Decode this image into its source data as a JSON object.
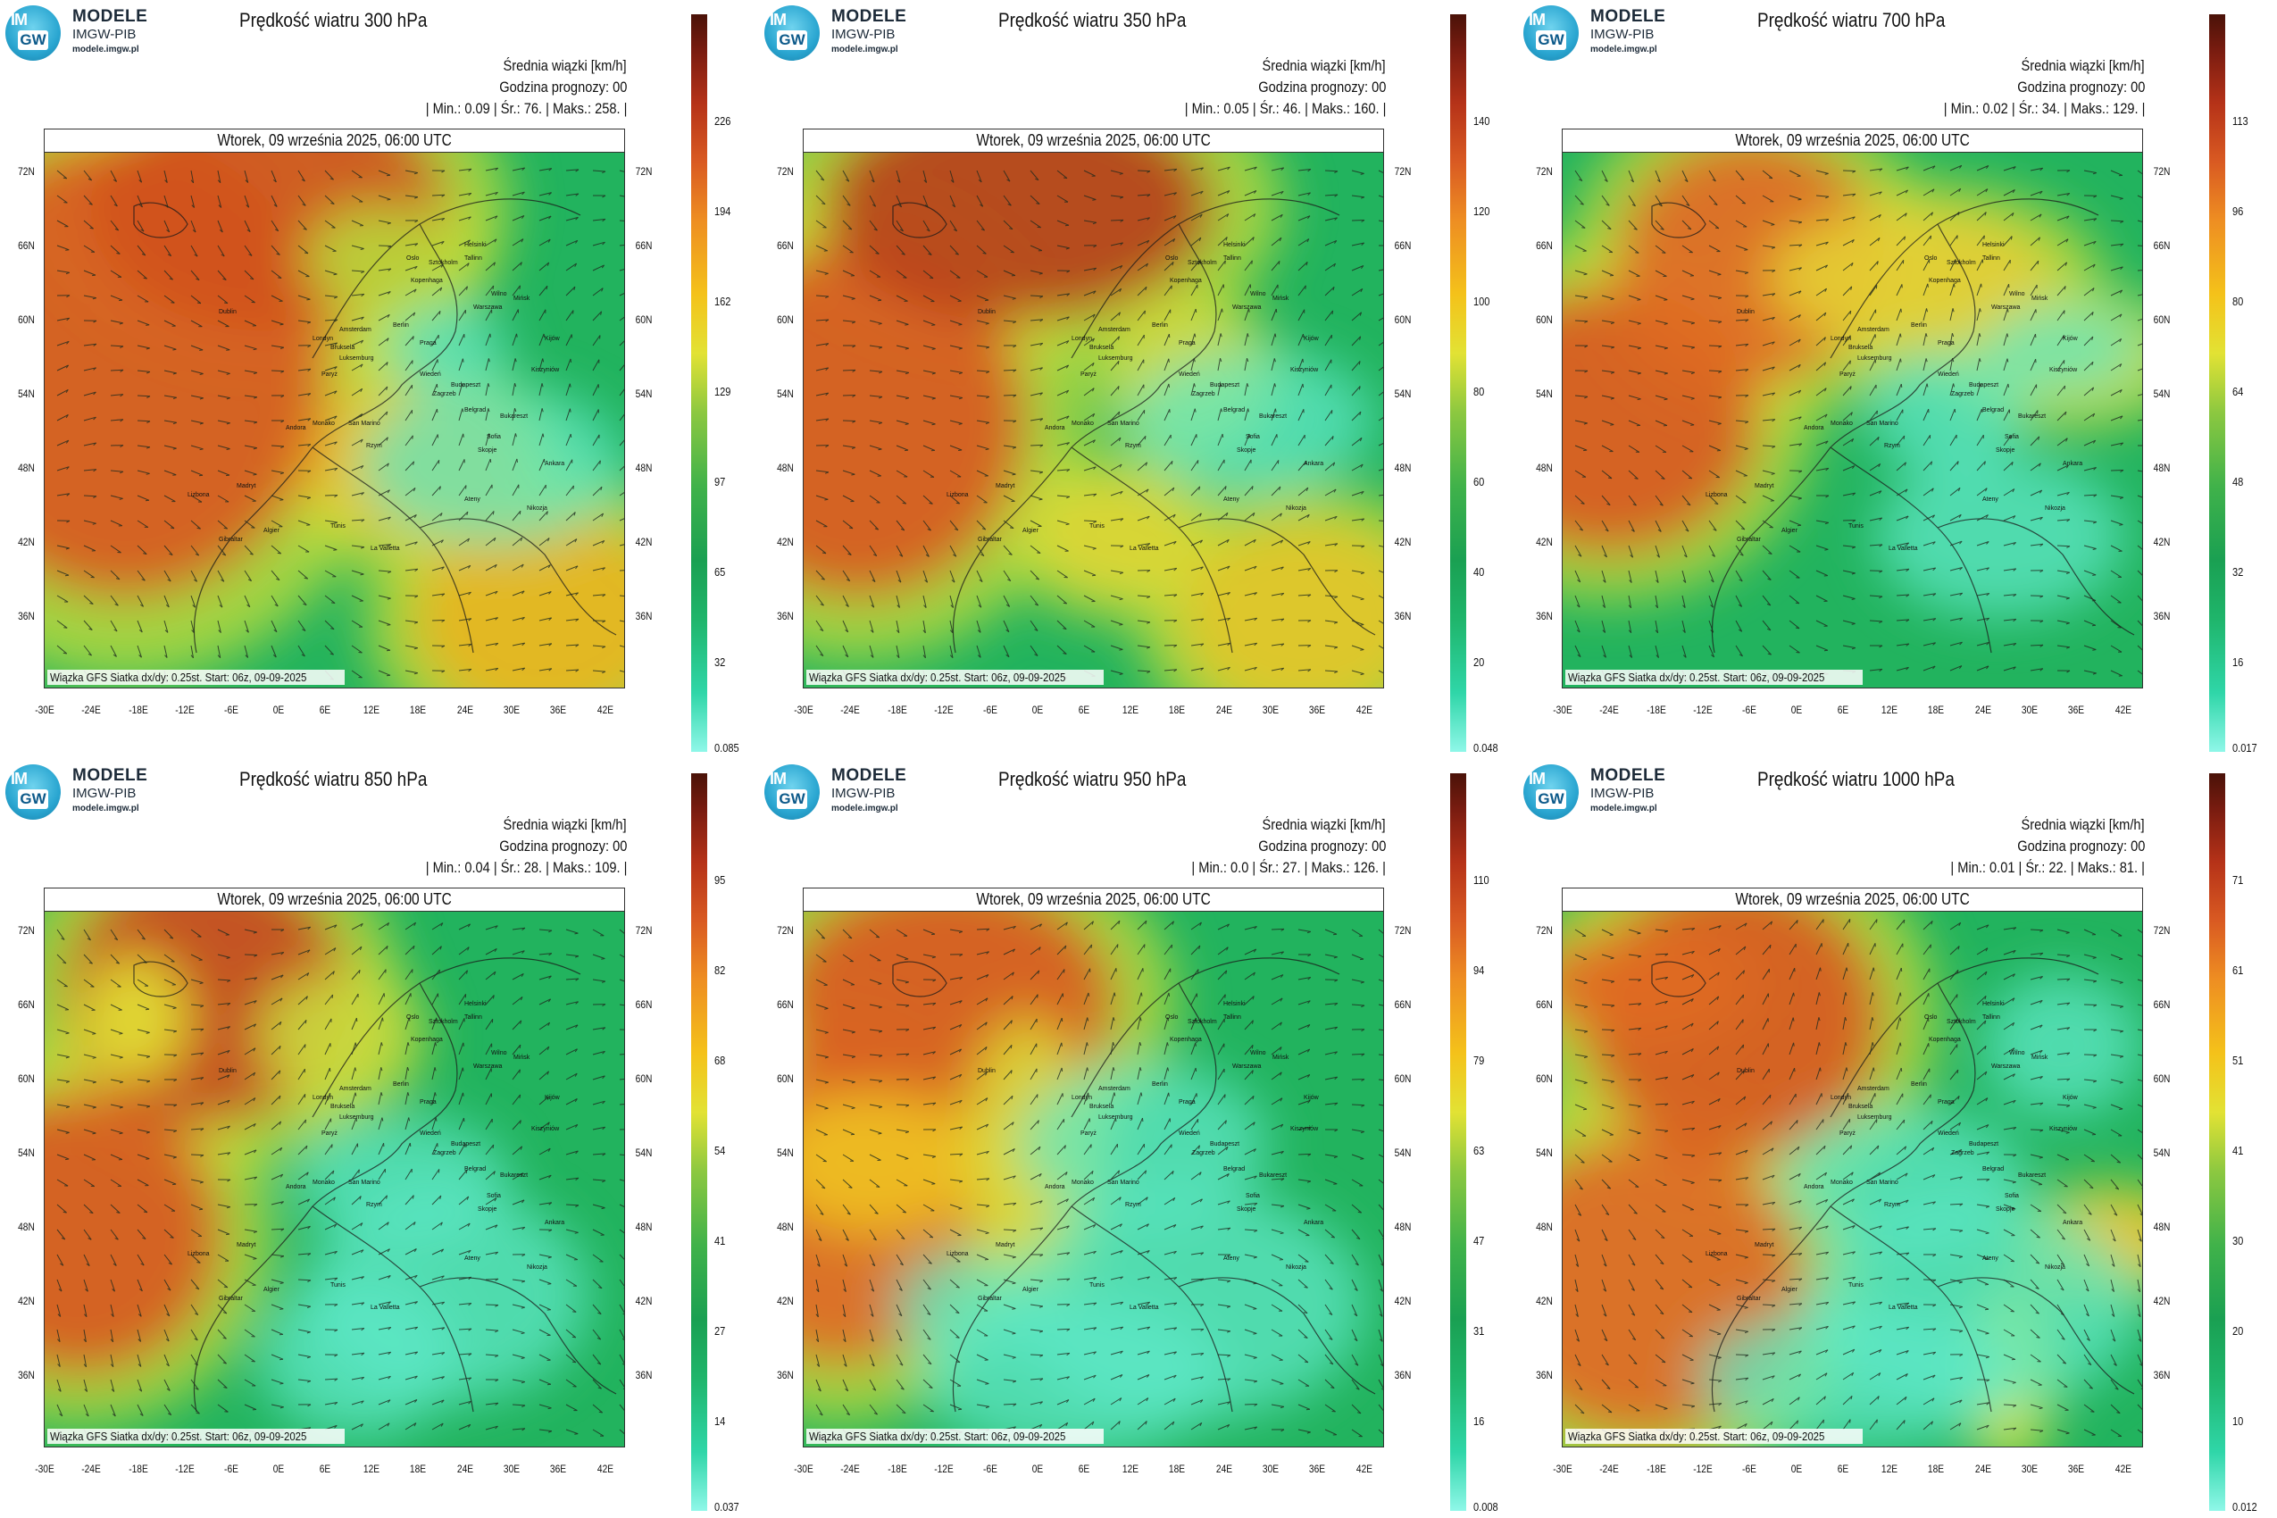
{
  "logo": {
    "line1": "MODELE",
    "line2": "IMGW-PIB",
    "line3": "modele.imgw.pl",
    "mark_top": "IM",
    "mark_bottom": "GW"
  },
  "common": {
    "units_label": "Średnia wiązki [km/h]",
    "forecast_hour_label": "Godzina prognozy: 00",
    "valid_time": "Wtorek, 09 września 2025, 06:00 UTC",
    "source": "Wiązka GFS Siatka dx/dy: 0.25st. Start: 06z, 09-09-2025",
    "lat_labels": [
      "72N",
      "66N",
      "60N",
      "54N",
      "48N",
      "42N",
      "36N"
    ],
    "lon_labels": [
      "-30E",
      "-24E",
      "-18E",
      "-12E",
      "-6E",
      "0E",
      "6E",
      "12E",
      "18E",
      "24E",
      "30E",
      "36E",
      "42E"
    ],
    "cities": [
      "Oslo",
      "Helsinki",
      "Tallinn",
      "Sztokholm",
      "Kopenhaga",
      "Wilno",
      "Mińsk",
      "Warszawa",
      "Amsterdam",
      "Londyn",
      "Bruksela",
      "Luksemburg",
      "Berlin",
      "Praga",
      "Paryż",
      "Wiedeń",
      "Kijów",
      "Kiszyniów",
      "Budapeszt",
      "Zagrzeb",
      "Belgrad",
      "Bukareszt",
      "Sofia",
      "Skopje",
      "Ankara",
      "Andora",
      "Monako",
      "San Marino",
      "Rzym",
      "Madryt",
      "Lizbona",
      "Gibraltar",
      "Algier",
      "Tunis",
      "La Valletta",
      "Ateny",
      "Nikozja",
      "Dublin"
    ]
  },
  "panels": [
    {
      "title": "Prędkość wiatru 300 hPa",
      "stats": "| Min.:    0.09 | Śr.:    76. | Maks.:    258. |",
      "cbar_ticks": [
        "226",
        "194",
        "162",
        "129",
        "97",
        "65",
        "32",
        "0.085"
      ],
      "min": 0.09,
      "mean": 76,
      "max": 258
    },
    {
      "title": "Prędkość wiatru 350 hPa",
      "stats": "| Min.:    0.05 | Śr.:    46. | Maks.:    160. |",
      "cbar_ticks": [
        "140",
        "120",
        "100",
        "80",
        "60",
        "40",
        "20",
        "0.048"
      ],
      "min": 0.05,
      "mean": 46,
      "max": 160
    },
    {
      "title": "Prędkość wiatru 700 hPa",
      "stats": "| Min.:    0.02 | Śr.:    34. | Maks.:    129. |",
      "cbar_ticks": [
        "113",
        "96",
        "80",
        "64",
        "48",
        "32",
        "16",
        "0.017"
      ],
      "min": 0.02,
      "mean": 34,
      "max": 129
    },
    {
      "title": "Prędkość wiatru 850 hPa",
      "stats": "| Min.:    0.04 | Śr.:    28. | Maks.:    109. |",
      "cbar_ticks": [
        "95",
        "82",
        "68",
        "54",
        "41",
        "27",
        "14",
        "0.037"
      ],
      "min": 0.04,
      "mean": 28,
      "max": 109
    },
    {
      "title": "Prędkość wiatru 950 hPa",
      "stats": "| Min.:    0.0 | Śr.:    27. | Maks.:    126. |",
      "cbar_ticks": [
        "110",
        "94",
        "79",
        "63",
        "47",
        "31",
        "16",
        "0.008"
      ],
      "min": 0.0,
      "mean": 27,
      "max": 126
    },
    {
      "title": "Prędkość wiatru 1000 hPa",
      "stats": "| Min.:    0.01 | Śr.:    22. | Maks.:    81. |",
      "cbar_ticks": [
        "71",
        "61",
        "51",
        "41",
        "30",
        "20",
        "10",
        "0.012"
      ],
      "min": 0.01,
      "mean": 22,
      "max": 81
    }
  ],
  "colors": {
    "low": "#8ff7e8",
    "mid_low": "#1fb56b",
    "mid": "#e2e234",
    "high": "#d95a22",
    "max": "#4a1208"
  }
}
